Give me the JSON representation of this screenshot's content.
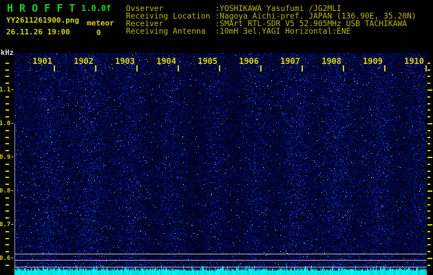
{
  "header": {
    "app_title": "H R O F F T",
    "version": "1.0.0f",
    "filename": "YY2611261900.png",
    "mode_label": "meteor",
    "datetime": "26.11.26 19:00",
    "count": "0",
    "info_lines": [
      "Ovserver           :YOSHIKAWA Yasufumi /JG2MLI",
      "Receiving Location :Nagoya Aichi-pref. JAPAN (136.90E, 35.20N)",
      "Receiver           :SMArt RTL-SDR V5 52.905MHz USB TACHIKAWA",
      "Receiving Antenna  :10mH 3el.YAGI Horizontal:ENE"
    ]
  },
  "chart_data": {
    "type": "heatmap",
    "title": "HROFFT radio meteor observation spectrogram, 19:00-19:10 JST",
    "ylabel": "kHz",
    "y_tick_labels": [
      "1.1",
      "1.0",
      "0.9",
      "0.8",
      "0.7",
      "0.6"
    ],
    "y_minor_tick_step_khz": 0.02,
    "x_tick_labels": [
      "1901",
      "1902",
      "1903",
      "1904",
      "1905",
      "1906",
      "1907",
      "1908",
      "1909",
      "1910"
    ],
    "meteor_echo_count": 0,
    "content_note": "uniform dark-blue background noise speckle with faint vertical density bands; no meteor echo streaks; three horizontal reference lines near 0.61, 0.60 and 0.58 kHz; jagged cyan signal-level strip along the bottom edge",
    "legend_position": "none",
    "grid": false
  },
  "colors": {
    "background": "#000000",
    "title_green": "#1dcf1d",
    "text_yellow": "#d4d400",
    "info_yellow": "#b9b900",
    "khz_white": "#d9d9d9",
    "ref_line_gray": "#b9bcc4",
    "left_edge_gray": "#9aa0b0",
    "strip_cyan": "#00e6e6",
    "noise_blue": "#0000aa"
  }
}
